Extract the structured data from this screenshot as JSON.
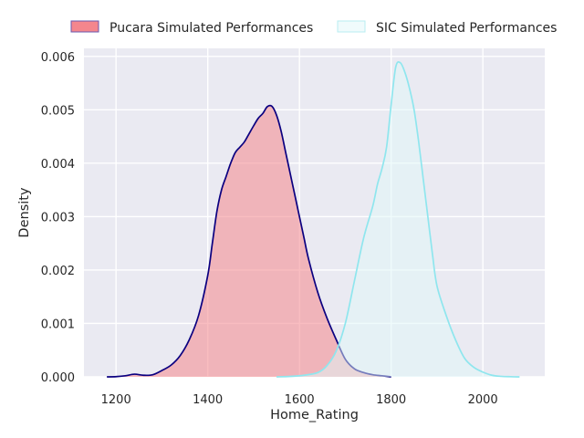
{
  "chart_data": {
    "type": "area",
    "title": "",
    "xlabel": "Home_Rating",
    "ylabel": "Density",
    "xlim": [
      1130,
      2135
    ],
    "ylim": [
      0,
      0.00615
    ],
    "x_ticks": [
      "1200",
      "1400",
      "1600",
      "1800",
      "2000"
    ],
    "x_tick_values": [
      1200,
      1400,
      1600,
      1800,
      2000
    ],
    "y_ticks": [
      "0.000",
      "0.001",
      "0.002",
      "0.003",
      "0.004",
      "0.005",
      "0.006"
    ],
    "y_tick_values": [
      0,
      0.001,
      0.002,
      0.003,
      0.004,
      0.005,
      0.006
    ],
    "grid": true,
    "legend_position": "top",
    "series": [
      {
        "name": "Pucara Simulated Performances",
        "filled": true,
        "fill_color": "#f4868d",
        "line_color": "#0b0080",
        "x": [
          1180,
          1200,
          1220,
          1240,
          1260,
          1280,
          1300,
          1320,
          1340,
          1360,
          1380,
          1400,
          1410,
          1420,
          1430,
          1440,
          1450,
          1460,
          1470,
          1480,
          1490,
          1500,
          1510,
          1520,
          1530,
          1540,
          1550,
          1560,
          1570,
          1580,
          1590,
          1600,
          1610,
          1620,
          1640,
          1660,
          1680,
          1700,
          1720,
          1740,
          1760,
          1780,
          1800
        ],
        "y": [
          0,
          4e-06,
          2e-05,
          5e-05,
          3e-05,
          4e-05,
          0.00012,
          0.00022,
          0.0004,
          0.0007,
          0.00115,
          0.0019,
          0.0025,
          0.0031,
          0.0035,
          0.00375,
          0.004,
          0.0042,
          0.0043,
          0.0044,
          0.00455,
          0.0047,
          0.00484,
          0.00493,
          0.00506,
          0.005065,
          0.0049,
          0.0046,
          0.0042,
          0.0038,
          0.0034,
          0.003,
          0.0026,
          0.0022,
          0.00158,
          0.0011,
          0.0007,
          0.00033,
          0.00015,
          8e-05,
          4e-05,
          2e-05,
          0
        ]
      },
      {
        "name": "SIC Simulated Performances",
        "filled": true,
        "fill_color": "#e0f8f8",
        "line_color": "#8fe6ee",
        "x": [
          1550,
          1580,
          1610,
          1640,
          1660,
          1680,
          1700,
          1720,
          1740,
          1760,
          1770,
          1780,
          1790,
          1800,
          1810,
          1820,
          1830,
          1840,
          1850,
          1860,
          1870,
          1880,
          1890,
          1900,
          1920,
          1940,
          1960,
          1980,
          2000,
          2020,
          2040,
          2060,
          2080
        ],
        "y": [
          0,
          8e-06,
          3e-05,
          8e-05,
          0.00021,
          0.00048,
          0.001,
          0.0018,
          0.0026,
          0.0032,
          0.0036,
          0.0039,
          0.0043,
          0.0051,
          0.0058,
          0.00588,
          0.0057,
          0.0054,
          0.005,
          0.0044,
          0.0037,
          0.003,
          0.0023,
          0.0017,
          0.00115,
          0.0007,
          0.00035,
          0.00018,
          9e-05,
          3e-05,
          1e-05,
          3e-06,
          0
        ]
      }
    ]
  }
}
